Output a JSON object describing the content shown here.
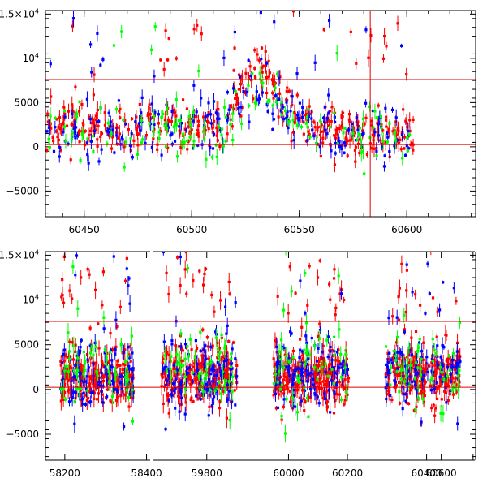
{
  "chart_data": [
    {
      "type": "scatter",
      "panel": "top",
      "xlim": [
        60432,
        60632
      ],
      "ylim": [
        -7900,
        15400
      ],
      "x_ticks": [
        60450,
        60500,
        60550,
        60600
      ],
      "x_tick_labels": [
        "60450",
        "60500",
        "60550",
        "60600"
      ],
      "y_ticks": [
        -5000,
        0,
        5000,
        10000,
        15000
      ],
      "y_tick_labels": [
        {
          "text": "−5000"
        },
        {
          "text": "0"
        },
        {
          "text": "5000"
        },
        {
          "text": "10",
          "sup": "4"
        },
        {
          "text": "1.5×10",
          "sup": "4"
        }
      ],
      "hlines": [
        7600,
        250
      ],
      "vlines": [
        60482,
        60583
      ],
      "point_groups": [
        {
          "color": "#ff0000",
          "x_range": [
            60432,
            60603
          ],
          "y_center": 2400,
          "y_spread": 2600,
          "peak_x": 60532,
          "peak_y": 8500,
          "count": 420,
          "seed": 11
        },
        {
          "color": "#0000ff",
          "x_range": [
            60432,
            60603
          ],
          "y_center": 2200,
          "y_spread": 3600,
          "peak_x": 60532,
          "peak_y": 7000,
          "count": 230,
          "seed": 23
        },
        {
          "color": "#00ff00",
          "x_range": [
            60432,
            60603
          ],
          "y_center": 1800,
          "y_spread": 3000,
          "peak_x": 60532,
          "peak_y": 6000,
          "count": 150,
          "seed": 37
        }
      ]
    },
    {
      "type": "scatter",
      "panel": "bottom",
      "xlim": [
        0,
        100
      ],
      "ylim": [
        -7900,
        15400
      ],
      "x_ticks": [
        4.5,
        23.5,
        37.5,
        56.5,
        70.2,
        88.6,
        92.0,
        99.4
      ],
      "x_tick_labels": [
        "58200",
        "58400",
        "59800",
        "60000",
        "60200",
        "60400",
        "60600",
        "60600"
      ],
      "y_ticks": [
        -5000,
        0,
        5000,
        10000,
        15000
      ],
      "y_tick_labels": [
        {
          "text": "−5000"
        },
        {
          "text": "0"
        },
        {
          "text": "5000"
        },
        {
          "text": "10",
          "sup": "4"
        },
        {
          "text": "1.5×10",
          "sup": "4"
        }
      ],
      "hlines": [
        7600,
        250
      ],
      "segments": [
        {
          "x_range": [
            3.5,
            20.5
          ],
          "seeds": [
            101,
            102,
            103
          ]
        },
        {
          "x_range": [
            27.0,
            44.5
          ],
          "seeds": [
            201,
            202,
            203
          ]
        },
        {
          "x_range": [
            53.0,
            70.5
          ],
          "seeds": [
            301,
            302,
            303
          ]
        },
        {
          "x_range": [
            79.0,
            96.5
          ],
          "seeds": [
            401,
            402,
            403
          ]
        }
      ],
      "point_groups": [
        {
          "color": "#ff0000",
          "y_center": 1500,
          "y_spread": 3200,
          "count_per_segment": 260
        },
        {
          "color": "#0000ff",
          "y_center": 1800,
          "y_spread": 4200,
          "count_per_segment": 110
        },
        {
          "color": "#00ff00",
          "y_center": 2200,
          "y_spread": 4200,
          "count_per_segment": 60
        }
      ]
    }
  ]
}
